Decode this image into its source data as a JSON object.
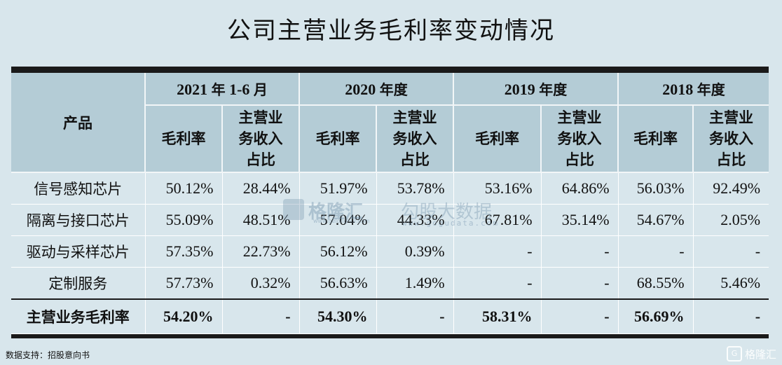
{
  "title": "公司主营业务毛利率变动情况",
  "header": {
    "product": "产品",
    "periods": [
      {
        "num": "2021",
        "unit": "年",
        "tail": "1-6",
        "tail2": "月"
      },
      {
        "num": "2020",
        "unit": "年度",
        "tail": "",
        "tail2": ""
      },
      {
        "num": "2019",
        "unit": "年度",
        "tail": "",
        "tail2": ""
      },
      {
        "num": "2018",
        "unit": "年度",
        "tail": "",
        "tail2": ""
      }
    ],
    "gross_margin": "毛利率",
    "share_line1": "主营业",
    "share_line2": "务收入",
    "share_line3": "占比"
  },
  "rows": [
    {
      "product": "信号感知芯片",
      "v": [
        "50.12%",
        "28.44%",
        "51.97%",
        "53.78%",
        "53.16%",
        "64.86%",
        "56.03%",
        "92.49%"
      ]
    },
    {
      "product": "隔离与接口芯片",
      "v": [
        "55.09%",
        "48.51%",
        "57.04%",
        "44.33%",
        "67.81%",
        "35.14%",
        "54.67%",
        "2.05%"
      ]
    },
    {
      "product": "驱动与采样芯片",
      "v": [
        "57.35%",
        "22.73%",
        "56.12%",
        "0.39%",
        "-",
        "-",
        "-",
        "-"
      ]
    },
    {
      "product": "定制服务",
      "v": [
        "57.73%",
        "0.32%",
        "56.63%",
        "1.49%",
        "-",
        "-",
        "68.55%",
        "5.46%"
      ]
    }
  ],
  "total": {
    "product": "主营业务毛利率",
    "v": [
      "54.20%",
      "-",
      "54.30%",
      "-",
      "58.31%",
      "-",
      "56.69%",
      "-"
    ]
  },
  "source": "数据支持：招股意向书",
  "watermarks": {
    "gelonghui": "格隆汇",
    "gelonghui_url": "www.gelonghui.com",
    "gogudata": "勾股大数据",
    "gogudata_url": "www.gogudata.com"
  },
  "brand": "格隆汇",
  "colors": {
    "background": "#d8e6ec",
    "header": "#b4ccd6",
    "rule": "#1a1a1a"
  }
}
